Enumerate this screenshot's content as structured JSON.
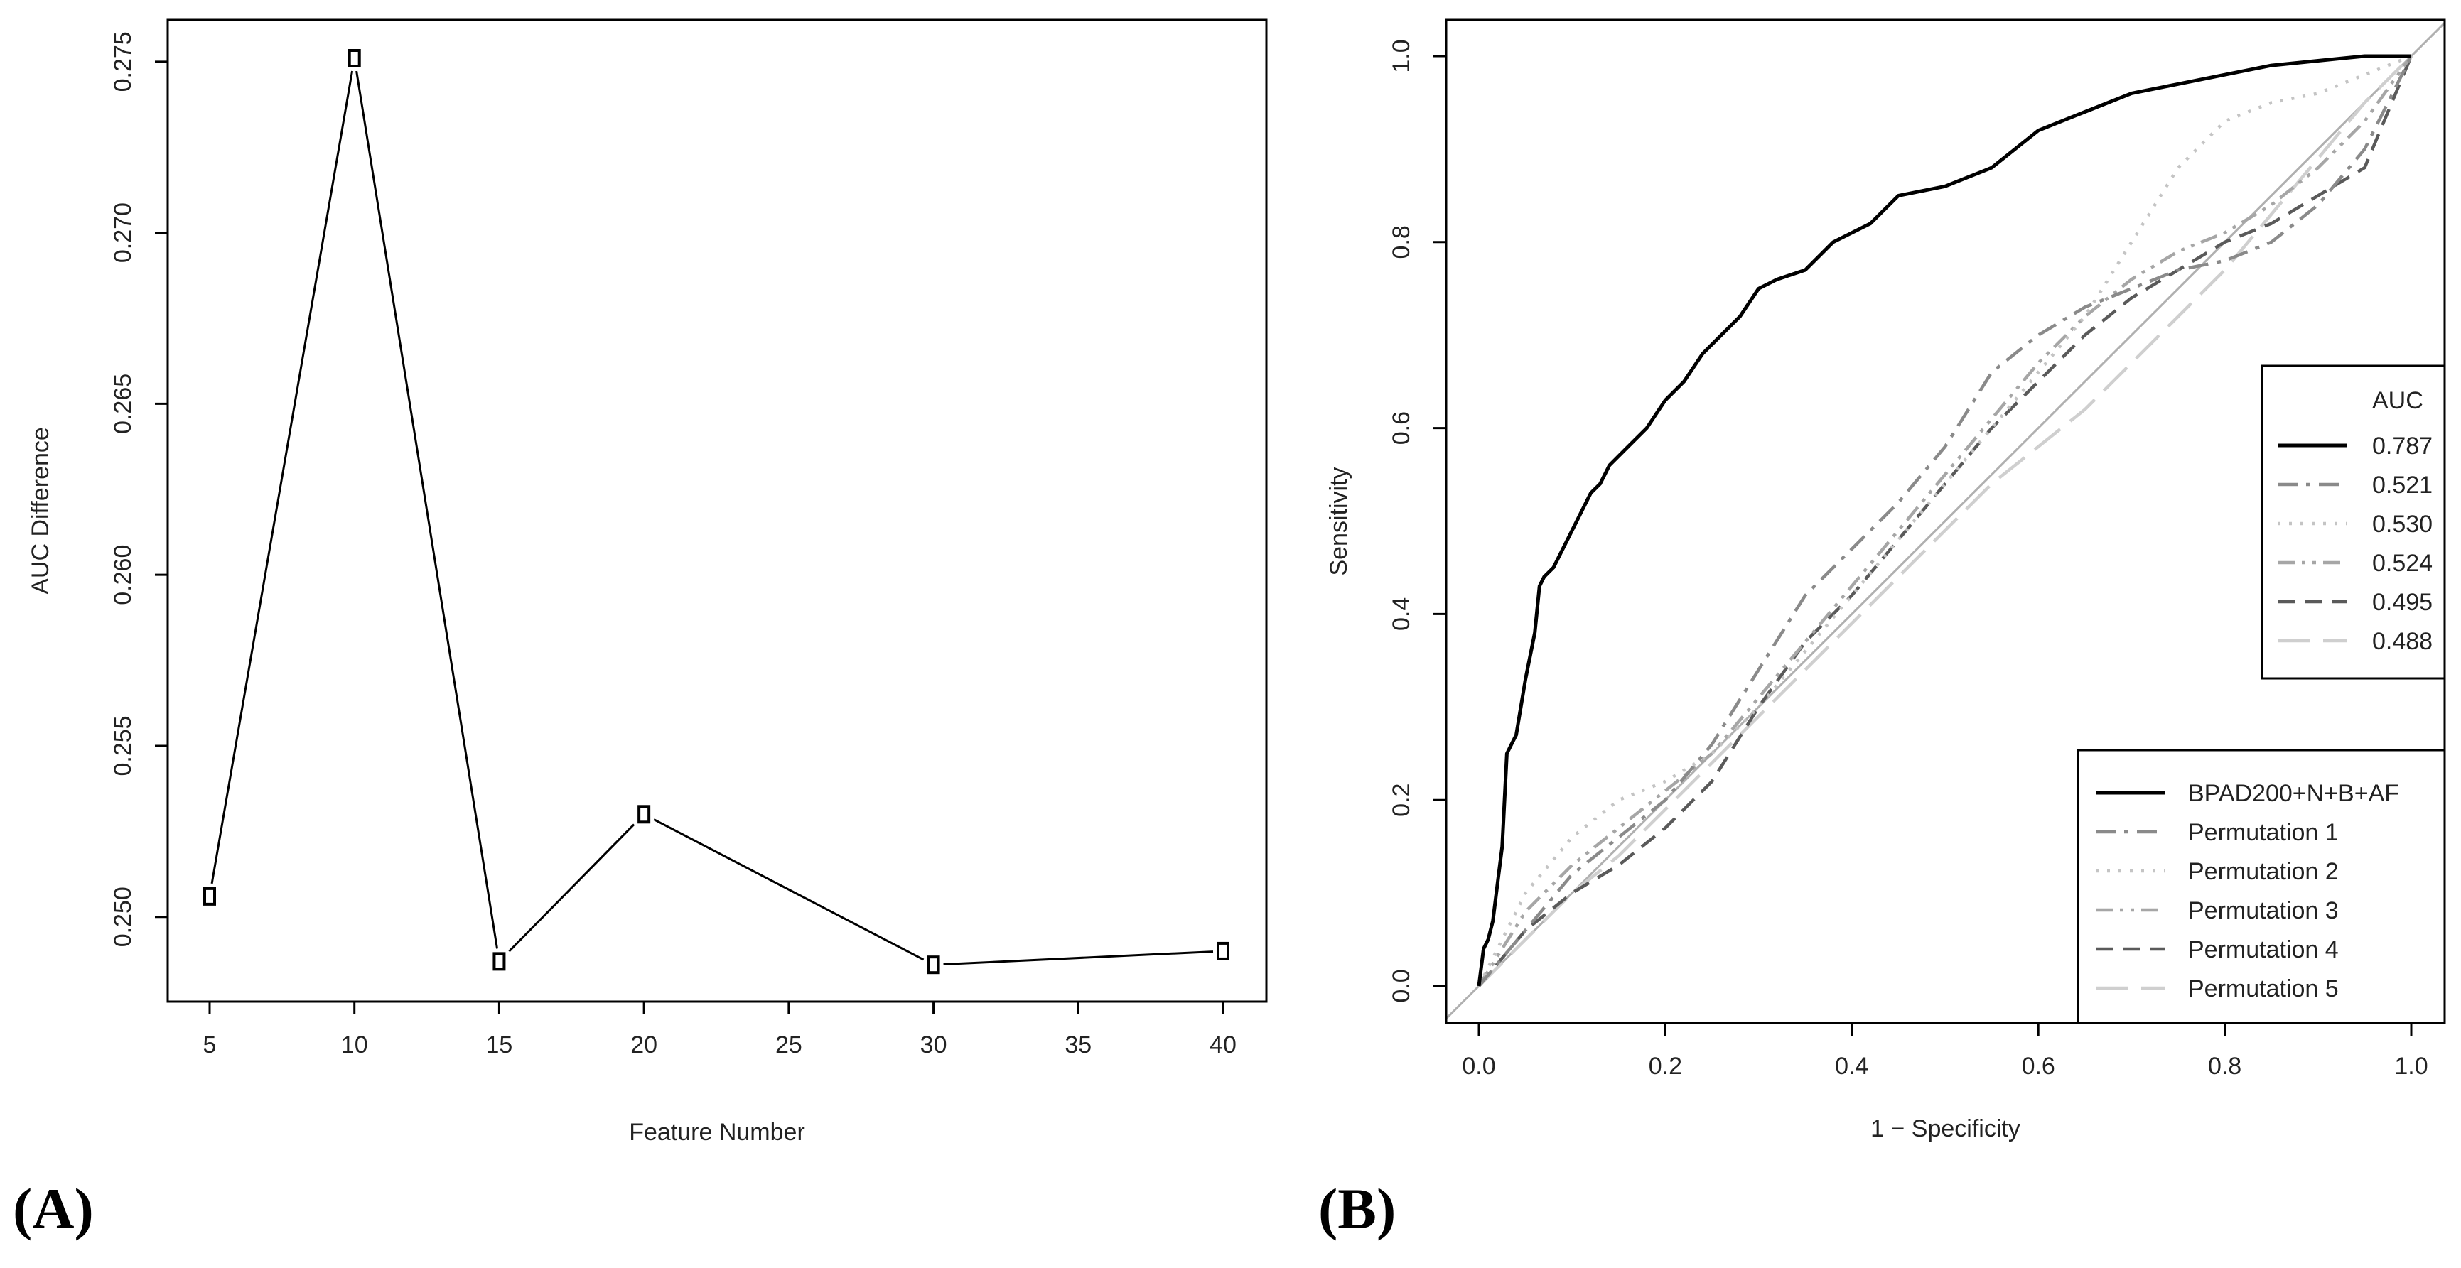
{
  "panels": {
    "a": {
      "tag": "(A)"
    },
    "b": {
      "tag": "(B)"
    }
  },
  "chart_data": [
    {
      "type": "line",
      "title": "",
      "xlabel": "Feature Number",
      "ylabel": "AUC Difference",
      "x": [
        5,
        10,
        15,
        20,
        30,
        40
      ],
      "series": [
        {
          "values": [
            0.2506,
            0.2751,
            0.2487,
            0.253,
            0.2486,
            0.249
          ],
          "color": "#000000",
          "marker": "open-rectangle"
        }
      ],
      "xlim": [
        5,
        40
      ],
      "ylim": [
        0.2485,
        0.2751
      ],
      "xticks": [
        5,
        10,
        15,
        20,
        25,
        30,
        35,
        40
      ],
      "yticks": [
        0.25,
        0.255,
        0.26,
        0.265,
        0.27,
        0.275
      ],
      "xtick_labels": [
        "5",
        "10",
        "15",
        "20",
        "25",
        "30",
        "35",
        "40"
      ],
      "ytick_labels": [
        "0.250",
        "0.255",
        "0.260",
        "0.265",
        "0.270",
        "0.275"
      ],
      "grid": false,
      "legend": "none"
    },
    {
      "type": "line",
      "title": "",
      "xlabel": "1 − Specificity",
      "ylabel": "Sensitivity",
      "xlim": [
        0,
        1
      ],
      "ylim": [
        0,
        1
      ],
      "xticks": [
        0,
        0.2,
        0.4,
        0.6,
        0.8,
        1.0
      ],
      "yticks": [
        0,
        0.2,
        0.4,
        0.6,
        0.8,
        1.0
      ],
      "xtick_labels": [
        "0.0",
        "0.2",
        "0.4",
        "0.6",
        "0.8",
        "1.0"
      ],
      "ytick_labels": [
        "0.0",
        "0.2",
        "0.4",
        "0.6",
        "0.8",
        "1.0"
      ],
      "grid": false,
      "reference_line": {
        "from": [
          0,
          0
        ],
        "to": [
          1,
          1
        ],
        "color": "#b0b0b0"
      },
      "auc_legend": {
        "title": "AUC",
        "placement": "right-middle"
      },
      "name_legend": {
        "placement": "bottom-right"
      },
      "series": [
        {
          "name": "BPAD200+N+B+AF",
          "auc": "0.787",
          "color": "#000000",
          "dash": "solid",
          "x": [
            0,
            0.005,
            0.01,
            0.015,
            0.02,
            0.025,
            0.03,
            0.035,
            0.04,
            0.05,
            0.06,
            0.065,
            0.07,
            0.08,
            0.09,
            0.1,
            0.11,
            0.12,
            0.13,
            0.14,
            0.16,
            0.18,
            0.2,
            0.22,
            0.24,
            0.26,
            0.28,
            0.3,
            0.32,
            0.35,
            0.38,
            0.42,
            0.45,
            0.5,
            0.55,
            0.6,
            0.65,
            0.7,
            0.75,
            0.8,
            0.85,
            0.9,
            0.95,
            1.0
          ],
          "y": [
            0,
            0.04,
            0.05,
            0.07,
            0.11,
            0.15,
            0.25,
            0.26,
            0.27,
            0.33,
            0.38,
            0.43,
            0.44,
            0.45,
            0.47,
            0.49,
            0.51,
            0.53,
            0.54,
            0.56,
            0.58,
            0.6,
            0.63,
            0.65,
            0.68,
            0.7,
            0.72,
            0.75,
            0.76,
            0.77,
            0.8,
            0.82,
            0.85,
            0.86,
            0.88,
            0.92,
            0.94,
            0.96,
            0.97,
            0.98,
            0.99,
            0.995,
            1.0,
            1.0
          ]
        },
        {
          "name": "Permutation 1",
          "auc": "0.521",
          "color": "#8a8a8a",
          "dash": "dashdot",
          "x": [
            0,
            0.05,
            0.1,
            0.2,
            0.25,
            0.3,
            0.35,
            0.4,
            0.45,
            0.5,
            0.55,
            0.6,
            0.65,
            0.7,
            0.75,
            0.8,
            0.85,
            0.9,
            0.95,
            1.0
          ],
          "y": [
            0,
            0.06,
            0.12,
            0.2,
            0.26,
            0.34,
            0.42,
            0.47,
            0.52,
            0.58,
            0.66,
            0.7,
            0.73,
            0.75,
            0.77,
            0.78,
            0.8,
            0.84,
            0.9,
            1.0
          ]
        },
        {
          "name": "Permutation 2",
          "auc": "0.530",
          "color": "#c4c4c4",
          "dash": "dotted",
          "x": [
            0,
            0.05,
            0.1,
            0.15,
            0.2,
            0.25,
            0.3,
            0.35,
            0.4,
            0.45,
            0.5,
            0.55,
            0.6,
            0.65,
            0.7,
            0.75,
            0.8,
            0.85,
            0.9,
            0.95,
            1.0
          ],
          "y": [
            0,
            0.1,
            0.16,
            0.2,
            0.22,
            0.25,
            0.3,
            0.36,
            0.42,
            0.48,
            0.54,
            0.6,
            0.66,
            0.72,
            0.8,
            0.88,
            0.93,
            0.95,
            0.96,
            0.98,
            1.0
          ]
        },
        {
          "name": "Permutation 3",
          "auc": "0.524",
          "color": "#a6a6a6",
          "dash": "dashdotdot",
          "x": [
            0,
            0.05,
            0.1,
            0.15,
            0.2,
            0.25,
            0.3,
            0.35,
            0.4,
            0.45,
            0.5,
            0.55,
            0.6,
            0.65,
            0.7,
            0.75,
            0.8,
            0.85,
            0.9,
            0.95,
            1.0
          ],
          "y": [
            0,
            0.08,
            0.13,
            0.17,
            0.21,
            0.25,
            0.31,
            0.37,
            0.43,
            0.49,
            0.55,
            0.61,
            0.67,
            0.72,
            0.76,
            0.79,
            0.81,
            0.84,
            0.88,
            0.93,
            1.0
          ]
        },
        {
          "name": "Permutation 4",
          "auc": "0.495",
          "color": "#5a5a5a",
          "dash": "dashed",
          "x": [
            0,
            0.05,
            0.1,
            0.15,
            0.2,
            0.25,
            0.3,
            0.35,
            0.4,
            0.45,
            0.5,
            0.55,
            0.6,
            0.65,
            0.7,
            0.75,
            0.8,
            0.85,
            0.9,
            0.95,
            1.0
          ],
          "y": [
            0,
            0.06,
            0.1,
            0.13,
            0.17,
            0.22,
            0.3,
            0.37,
            0.42,
            0.48,
            0.54,
            0.6,
            0.65,
            0.7,
            0.74,
            0.77,
            0.8,
            0.82,
            0.85,
            0.88,
            1.0
          ]
        },
        {
          "name": "Permutation 5",
          "auc": "0.488",
          "color": "#cfcfcf",
          "dash": "longdash",
          "x": [
            0,
            0.05,
            0.1,
            0.15,
            0.2,
            0.25,
            0.3,
            0.35,
            0.4,
            0.45,
            0.5,
            0.55,
            0.6,
            0.65,
            0.7,
            0.75,
            0.8,
            0.85,
            0.9,
            0.95,
            1.0
          ],
          "y": [
            0,
            0.05,
            0.1,
            0.14,
            0.19,
            0.24,
            0.29,
            0.34,
            0.39,
            0.44,
            0.49,
            0.54,
            0.58,
            0.62,
            0.67,
            0.72,
            0.77,
            0.83,
            0.89,
            0.95,
            1.0
          ]
        }
      ]
    }
  ]
}
